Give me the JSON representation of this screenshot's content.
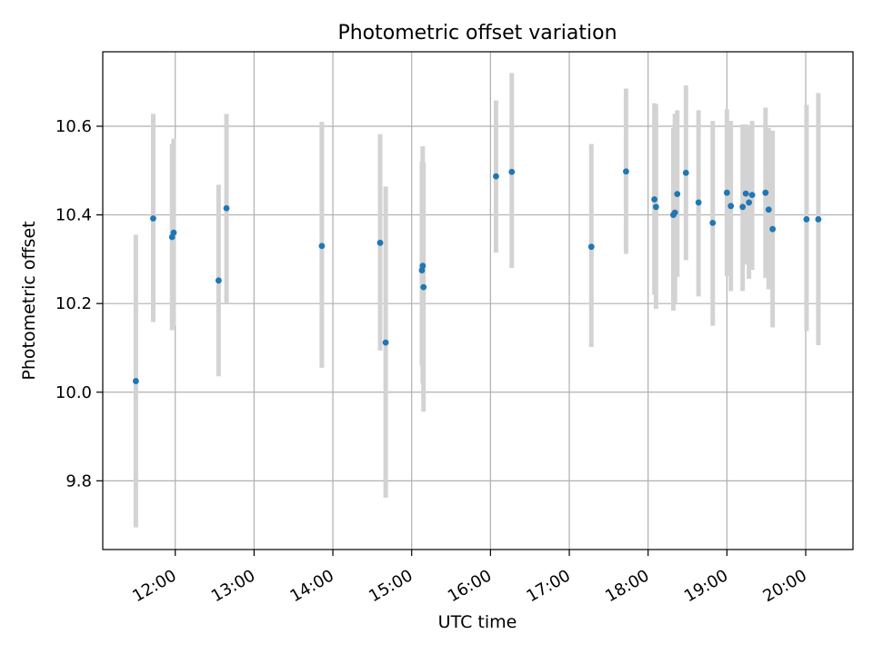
{
  "chart_data": {
    "type": "scatter",
    "title": "Photometric offset variation",
    "xlabel": "UTC time",
    "ylabel": "Photometric offset",
    "x_unit": "hours (UTC)",
    "xlim": [
      11.08,
      20.6
    ],
    "ylim": [
      9.645,
      10.768
    ],
    "x_ticks": [
      12,
      13,
      14,
      15,
      16,
      17,
      18,
      19,
      20
    ],
    "x_tick_labels": [
      "12:00",
      "13:00",
      "14:00",
      "15:00",
      "16:00",
      "17:00",
      "18:00",
      "19:00",
      "20:00"
    ],
    "y_ticks": [
      9.8,
      10.0,
      10.2,
      10.4,
      10.6
    ],
    "y_tick_labels": [
      "9.8",
      "10.0",
      "10.2",
      "10.4",
      "10.6"
    ],
    "grid": true,
    "colors": {
      "point": "#1f77b4",
      "errorbar": "#d3d3d3",
      "grid": "#b0b0b0"
    },
    "points": [
      {
        "x": 11.5,
        "y": 10.025,
        "lo": 9.695,
        "hi": 10.355
      },
      {
        "x": 11.72,
        "y": 10.392,
        "lo": 10.158,
        "hi": 10.628
      },
      {
        "x": 11.96,
        "y": 10.35,
        "lo": 10.14,
        "hi": 10.56
      },
      {
        "x": 11.98,
        "y": 10.36,
        "lo": 10.15,
        "hi": 10.572
      },
      {
        "x": 12.55,
        "y": 10.252,
        "lo": 10.036,
        "hi": 10.468
      },
      {
        "x": 12.65,
        "y": 10.415,
        "lo": 10.2,
        "hi": 10.628
      },
      {
        "x": 13.86,
        "y": 10.33,
        "lo": 10.055,
        "hi": 10.61
      },
      {
        "x": 14.6,
        "y": 10.337,
        "lo": 10.094,
        "hi": 10.582
      },
      {
        "x": 14.67,
        "y": 10.112,
        "lo": 9.762,
        "hi": 10.464
      },
      {
        "x": 15.13,
        "y": 10.275,
        "lo": 10.06,
        "hi": 10.52
      },
      {
        "x": 15.14,
        "y": 10.285,
        "lo": 10.02,
        "hi": 10.555
      },
      {
        "x": 15.15,
        "y": 10.237,
        "lo": 9.956,
        "hi": 10.518
      },
      {
        "x": 16.07,
        "y": 10.487,
        "lo": 10.315,
        "hi": 10.658
      },
      {
        "x": 16.27,
        "y": 10.497,
        "lo": 10.28,
        "hi": 10.72
      },
      {
        "x": 17.28,
        "y": 10.328,
        "lo": 10.102,
        "hi": 10.56
      },
      {
        "x": 17.72,
        "y": 10.498,
        "lo": 10.312,
        "hi": 10.685
      },
      {
        "x": 18.08,
        "y": 10.435,
        "lo": 10.22,
        "hi": 10.652
      },
      {
        "x": 18.1,
        "y": 10.418,
        "lo": 10.188,
        "hi": 10.65
      },
      {
        "x": 18.32,
        "y": 10.4,
        "lo": 10.184,
        "hi": 10.596
      },
      {
        "x": 18.34,
        "y": 10.405,
        "lo": 10.2,
        "hi": 10.628
      },
      {
        "x": 18.37,
        "y": 10.447,
        "lo": 10.26,
        "hi": 10.636
      },
      {
        "x": 18.48,
        "y": 10.495,
        "lo": 10.298,
        "hi": 10.692
      },
      {
        "x": 18.64,
        "y": 10.428,
        "lo": 10.216,
        "hi": 10.636
      },
      {
        "x": 18.82,
        "y": 10.382,
        "lo": 10.15,
        "hi": 10.612
      },
      {
        "x": 19.0,
        "y": 10.45,
        "lo": 10.262,
        "hi": 10.638
      },
      {
        "x": 19.05,
        "y": 10.42,
        "lo": 10.228,
        "hi": 10.612
      },
      {
        "x": 19.2,
        "y": 10.418,
        "lo": 10.228,
        "hi": 10.604
      },
      {
        "x": 19.24,
        "y": 10.448,
        "lo": 10.288,
        "hi": 10.604
      },
      {
        "x": 19.28,
        "y": 10.428,
        "lo": 10.256,
        "hi": 10.6
      },
      {
        "x": 19.32,
        "y": 10.445,
        "lo": 10.276,
        "hi": 10.612
      },
      {
        "x": 19.49,
        "y": 10.45,
        "lo": 10.258,
        "hi": 10.642
      },
      {
        "x": 19.53,
        "y": 10.412,
        "lo": 10.232,
        "hi": 10.596
      },
      {
        "x": 19.58,
        "y": 10.368,
        "lo": 10.146,
        "hi": 10.59
      },
      {
        "x": 20.01,
        "y": 10.39,
        "lo": 10.138,
        "hi": 10.648
      },
      {
        "x": 20.16,
        "y": 10.39,
        "lo": 10.106,
        "hi": 10.675
      }
    ]
  }
}
